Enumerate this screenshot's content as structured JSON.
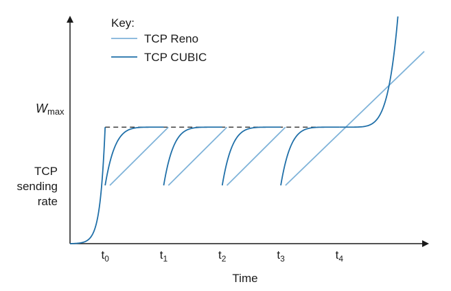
{
  "chart_data": {
    "type": "line",
    "title": "",
    "xlabel": "Time",
    "ylabel": [
      "TCP",
      "sending",
      "rate"
    ],
    "y_marker": {
      "symbol": "W",
      "subscript": "max",
      "value": 1.0
    },
    "x_ticks": [
      {
        "base": "t",
        "sub": "0",
        "value": 0
      },
      {
        "base": "t",
        "sub": "1",
        "value": 1
      },
      {
        "base": "t",
        "sub": "2",
        "value": 2
      },
      {
        "base": "t",
        "sub": "3",
        "value": 3
      },
      {
        "base": "t",
        "sub": "4",
        "value": 4
      }
    ],
    "xlim": [
      -0.6,
      5.45
    ],
    "ylim": [
      0,
      1.95
    ],
    "legend": {
      "title": "Key:",
      "position": "top-left"
    },
    "series": [
      {
        "name": "TCP Reno",
        "color": "#7fb3d9",
        "segments": [
          {
            "x_start": 0.08,
            "y_start": 0.5,
            "x_end": 1.08,
            "y_end": 1.0
          },
          {
            "x_start": 1.08,
            "y_start": 0.5,
            "x_end": 2.08,
            "y_end": 1.0
          },
          {
            "x_start": 2.08,
            "y_start": 0.5,
            "x_end": 3.08,
            "y_end": 1.0
          },
          {
            "x_start": 3.08,
            "y_start": 0.5,
            "x_end": 5.45,
            "y_end": 1.65
          }
        ]
      },
      {
        "name": "TCP CUBIC",
        "color": "#1f6fa8",
        "ramp_up": {
          "x_start": -0.6,
          "x_end": 0.0,
          "y_start": 0.0,
          "y_end": 1.0
        },
        "cycles": [
          {
            "x_start": 0.0,
            "x_end": 1.0,
            "y_start": 0.5,
            "y_end": 1.0
          },
          {
            "x_start": 1.0,
            "x_end": 2.0,
            "y_start": 0.5,
            "y_end": 1.0
          },
          {
            "x_start": 2.0,
            "x_end": 3.0,
            "y_start": 0.5,
            "y_end": 1.0
          },
          {
            "x_start": 3.0,
            "x_end": 4.0,
            "y_start": 0.5,
            "y_end": 1.0
          }
        ],
        "final_probe": {
          "x_start": 4.0,
          "x_end": 5.0,
          "y_start": 1.0,
          "y_end": 1.95
        }
      }
    ],
    "reference_line": {
      "style": "dashed",
      "color": "#1a1a1a",
      "y": 1.0,
      "x_start": 0.0,
      "x_end": 3.6
    }
  }
}
